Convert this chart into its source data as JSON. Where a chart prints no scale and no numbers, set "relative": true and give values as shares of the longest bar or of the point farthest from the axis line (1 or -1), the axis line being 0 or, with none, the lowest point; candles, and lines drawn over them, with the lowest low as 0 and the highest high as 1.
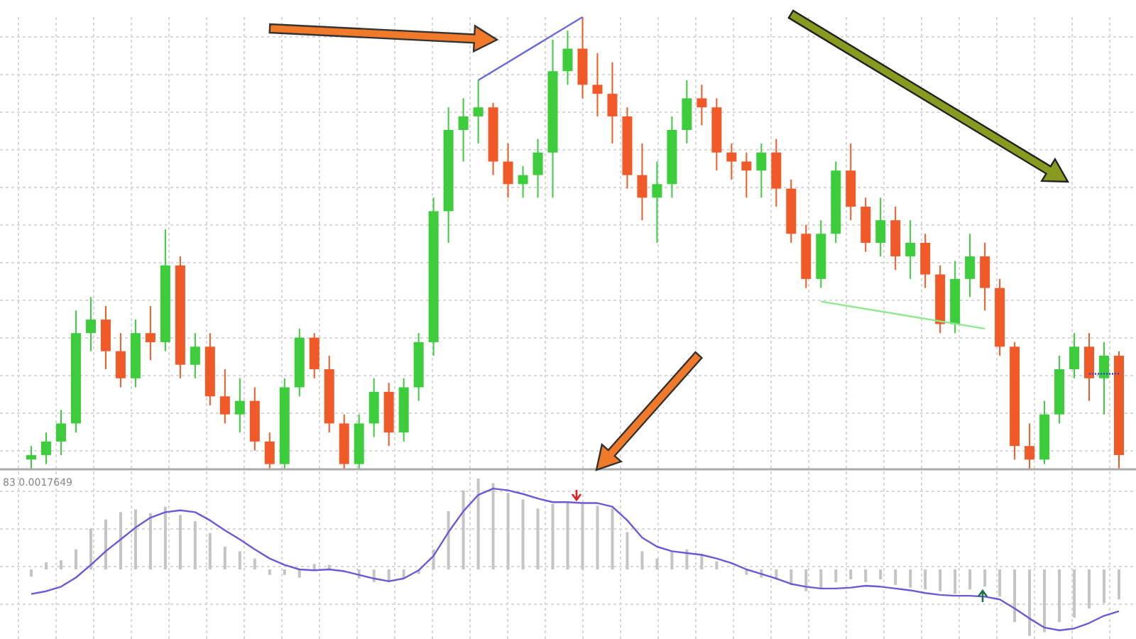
{
  "chart_data": [
    {
      "type": "candlestick",
      "relative": true,
      "grid": true,
      "categories": [
        null,
        null,
        null,
        null,
        null,
        null,
        null,
        null,
        null,
        null,
        null,
        null,
        null,
        null,
        null,
        null,
        null,
        null,
        null,
        null,
        null,
        null,
        null,
        null,
        null,
        null,
        null,
        null,
        null,
        null,
        null,
        null,
        null,
        null,
        null,
        null,
        null,
        null,
        null,
        null,
        null,
        null,
        null,
        null,
        null,
        null,
        null,
        null,
        null,
        null,
        null,
        null,
        null,
        null,
        null,
        null,
        null,
        null,
        null,
        null,
        null,
        null,
        null,
        null,
        null,
        null,
        null,
        null,
        null,
        null,
        null,
        null,
        null,
        null
      ],
      "ohlc": [
        [
          0.02,
          0.05,
          0.0,
          0.03
        ],
        [
          0.03,
          0.08,
          0.01,
          0.06
        ],
        [
          0.06,
          0.13,
          0.03,
          0.1
        ],
        [
          0.1,
          0.35,
          0.08,
          0.3
        ],
        [
          0.3,
          0.38,
          0.26,
          0.33
        ],
        [
          0.33,
          0.36,
          0.22,
          0.26
        ],
        [
          0.26,
          0.3,
          0.18,
          0.2
        ],
        [
          0.2,
          0.33,
          0.18,
          0.3
        ],
        [
          0.3,
          0.36,
          0.24,
          0.28
        ],
        [
          0.28,
          0.53,
          0.26,
          0.45
        ],
        [
          0.45,
          0.47,
          0.2,
          0.23
        ],
        [
          0.23,
          0.3,
          0.2,
          0.27
        ],
        [
          0.27,
          0.3,
          0.14,
          0.16
        ],
        [
          0.16,
          0.22,
          0.1,
          0.12
        ],
        [
          0.12,
          0.2,
          0.08,
          0.15
        ],
        [
          0.15,
          0.18,
          0.04,
          0.06
        ],
        [
          0.06,
          0.08,
          0.0,
          0.01
        ],
        [
          0.01,
          0.2,
          0.0,
          0.18
        ],
        [
          0.18,
          0.31,
          0.16,
          0.29
        ],
        [
          0.29,
          0.3,
          0.2,
          0.22
        ],
        [
          0.22,
          0.25,
          0.08,
          0.1
        ],
        [
          0.1,
          0.12,
          0.0,
          0.01
        ],
        [
          0.01,
          0.12,
          0.0,
          0.1
        ],
        [
          0.1,
          0.2,
          0.07,
          0.17
        ],
        [
          0.17,
          0.19,
          0.05,
          0.08
        ],
        [
          0.08,
          0.2,
          0.06,
          0.18
        ],
        [
          0.18,
          0.3,
          0.15,
          0.28
        ],
        [
          0.28,
          0.6,
          0.25,
          0.57
        ],
        [
          0.57,
          0.8,
          0.5,
          0.75
        ],
        [
          0.75,
          0.82,
          0.68,
          0.78
        ],
        [
          0.78,
          0.86,
          0.72,
          0.8
        ],
        [
          0.8,
          0.81,
          0.65,
          0.68
        ],
        [
          0.68,
          0.72,
          0.6,
          0.63
        ],
        [
          0.63,
          0.67,
          0.6,
          0.65
        ],
        [
          0.65,
          0.73,
          0.6,
          0.7
        ],
        [
          0.7,
          0.95,
          0.6,
          0.88
        ],
        [
          0.88,
          0.97,
          0.85,
          0.93
        ],
        [
          0.93,
          1.0,
          0.82,
          0.85
        ],
        [
          0.85,
          0.92,
          0.78,
          0.83
        ],
        [
          0.83,
          0.9,
          0.72,
          0.78
        ],
        [
          0.78,
          0.8,
          0.62,
          0.65
        ],
        [
          0.65,
          0.72,
          0.55,
          0.6
        ],
        [
          0.6,
          0.68,
          0.5,
          0.63
        ],
        [
          0.63,
          0.78,
          0.6,
          0.75
        ],
        [
          0.75,
          0.86,
          0.72,
          0.82
        ],
        [
          0.82,
          0.85,
          0.76,
          0.8
        ],
        [
          0.8,
          0.82,
          0.66,
          0.7
        ],
        [
          0.7,
          0.72,
          0.64,
          0.68
        ],
        [
          0.68,
          0.7,
          0.6,
          0.66
        ],
        [
          0.66,
          0.72,
          0.6,
          0.7
        ],
        [
          0.7,
          0.73,
          0.58,
          0.62
        ],
        [
          0.62,
          0.64,
          0.5,
          0.52
        ],
        [
          0.52,
          0.54,
          0.4,
          0.42
        ],
        [
          0.42,
          0.55,
          0.4,
          0.52
        ],
        [
          0.52,
          0.68,
          0.5,
          0.66
        ],
        [
          0.66,
          0.72,
          0.55,
          0.58
        ],
        [
          0.58,
          0.6,
          0.48,
          0.5
        ],
        [
          0.5,
          0.6,
          0.47,
          0.55
        ],
        [
          0.55,
          0.58,
          0.44,
          0.47
        ],
        [
          0.47,
          0.55,
          0.42,
          0.5
        ],
        [
          0.5,
          0.52,
          0.4,
          0.43
        ],
        [
          0.43,
          0.45,
          0.3,
          0.32
        ],
        [
          0.32,
          0.46,
          0.3,
          0.42
        ],
        [
          0.42,
          0.52,
          0.38,
          0.47
        ],
        [
          0.47,
          0.5,
          0.35,
          0.4
        ],
        [
          0.4,
          0.42,
          0.25,
          0.27
        ],
        [
          0.27,
          0.28,
          0.02,
          0.05
        ],
        [
          0.05,
          0.1,
          0.0,
          0.02
        ],
        [
          0.02,
          0.15,
          0.01,
          0.12
        ],
        [
          0.12,
          0.25,
          0.1,
          0.22
        ],
        [
          0.22,
          0.3,
          0.2,
          0.27
        ],
        [
          0.27,
          0.3,
          0.15,
          0.2
        ],
        [
          0.2,
          0.28,
          0.12,
          0.25
        ],
        [
          0.25,
          0.26,
          0.0,
          0.03
        ]
      ],
      "colors": [
        "#3ccc3c",
        "#3ccc3c",
        "#3ccc3c",
        "#3ccc3c",
        "#3ccc3c",
        "#f05a28",
        "#f05a28",
        "#3ccc3c",
        "#f05a28",
        "#3ccc3c",
        "#f05a28",
        "#3ccc3c",
        "#f05a28",
        "#f05a28",
        "#3ccc3c",
        "#f05a28",
        "#f05a28",
        "#3ccc3c",
        "#3ccc3c",
        "#f05a28",
        "#f05a28",
        "#f05a28",
        "#3ccc3c",
        "#3ccc3c",
        "#f05a28",
        "#3ccc3c",
        "#3ccc3c",
        "#3ccc3c",
        "#3ccc3c",
        "#3ccc3c",
        "#3ccc3c",
        "#f05a28",
        "#f05a28",
        "#3ccc3c",
        "#3ccc3c",
        "#3ccc3c",
        "#3ccc3c",
        "#f05a28",
        "#f05a28",
        "#f05a28",
        "#f05a28",
        "#f05a28",
        "#3ccc3c",
        "#3ccc3c",
        "#3ccc3c",
        "#f05a28",
        "#f05a28",
        "#f05a28",
        "#f05a28",
        "#3ccc3c",
        "#f05a28",
        "#f05a28",
        "#f05a28",
        "#3ccc3c",
        "#3ccc3c",
        "#f05a28",
        "#f05a28",
        "#3ccc3c",
        "#f05a28",
        "#3ccc3c",
        "#f05a28",
        "#f05a28",
        "#3ccc3c",
        "#3ccc3c",
        "#f05a28",
        "#f05a28",
        "#f05a28",
        "#f05a28",
        "#3ccc3c",
        "#3ccc3c",
        "#3ccc3c",
        "#f05a28",
        "#3ccc3c",
        "#f05a28"
      ],
      "series": [
        {
          "type": "line",
          "color": "#6a6ae0",
          "values": [
            null,
            null,
            null,
            null,
            null,
            null,
            null,
            null,
            null,
            null,
            null,
            null,
            null,
            null,
            null,
            null,
            null,
            null,
            null,
            null,
            null,
            null,
            null,
            null,
            null,
            null,
            null,
            null,
            null,
            null,
            0.86,
            null,
            null,
            null,
            null,
            null,
            null,
            1.0,
            null,
            null,
            null,
            null,
            null,
            null,
            null,
            null,
            null,
            null,
            null,
            null,
            null,
            null,
            null,
            null,
            null,
            null,
            null,
            null,
            null,
            null,
            null,
            null,
            null,
            null,
            null,
            null,
            null,
            null,
            null,
            null,
            null,
            null,
            null,
            null
          ]
        },
        {
          "type": "line",
          "color": "#8ee88e",
          "values": [
            null,
            null,
            null,
            null,
            null,
            null,
            null,
            null,
            null,
            null,
            null,
            null,
            null,
            null,
            null,
            null,
            null,
            null,
            null,
            null,
            null,
            null,
            null,
            null,
            null,
            null,
            null,
            null,
            null,
            null,
            null,
            null,
            null,
            null,
            null,
            null,
            null,
            null,
            null,
            null,
            null,
            null,
            null,
            null,
            null,
            null,
            null,
            null,
            null,
            null,
            null,
            null,
            null,
            0.37,
            null,
            null,
            null,
            null,
            null,
            null,
            null,
            null,
            null,
            null,
            0.31,
            null,
            null,
            null,
            null,
            null,
            null,
            null,
            null,
            null
          ]
        },
        {
          "type": "line",
          "color": "#3a3ad0",
          "line_style": "dotted",
          "values": [
            null,
            null,
            null,
            null,
            null,
            null,
            null,
            null,
            null,
            null,
            null,
            null,
            null,
            null,
            null,
            null,
            null,
            null,
            null,
            null,
            null,
            null,
            null,
            null,
            null,
            null,
            null,
            null,
            null,
            null,
            null,
            null,
            null,
            null,
            null,
            null,
            null,
            null,
            null,
            null,
            null,
            null,
            null,
            null,
            null,
            null,
            null,
            null,
            null,
            null,
            null,
            null,
            null,
            null,
            null,
            null,
            null,
            null,
            null,
            null,
            null,
            null,
            null,
            null,
            null,
            null,
            null,
            null,
            null,
            null,
            null,
            0.21,
            0.21,
            0.21
          ]
        }
      ]
    },
    {
      "type": "bar",
      "relative": true,
      "grid": true,
      "annotations": [
        "83 0.0017649"
      ],
      "categories": [
        null,
        null,
        null,
        null,
        null,
        null,
        null,
        null,
        null,
        null,
        null,
        null,
        null,
        null,
        null,
        null,
        null,
        null,
        null,
        null,
        null,
        null,
        null,
        null,
        null,
        null,
        null,
        null,
        null,
        null,
        null,
        null,
        null,
        null,
        null,
        null,
        null,
        null,
        null,
        null,
        null,
        null,
        null,
        null,
        null,
        null,
        null,
        null,
        null,
        null,
        null,
        null,
        null,
        null,
        null,
        null,
        null,
        null,
        null,
        null,
        null,
        null,
        null,
        null,
        null,
        null,
        null,
        null,
        null,
        null,
        null,
        null,
        null,
        null
      ],
      "series": [
        {
          "type": "bar",
          "color": "#c4c4c4",
          "values": [
            -0.08,
            0.08,
            0.1,
            0.22,
            0.45,
            0.55,
            0.63,
            0.66,
            0.62,
            0.69,
            0.6,
            0.53,
            0.4,
            0.25,
            0.2,
            0.12,
            -0.06,
            -0.06,
            -0.09,
            0.06,
            0.05,
            null,
            -0.1,
            -0.14,
            -0.14,
            -0.1,
            -0.05,
            0.22,
            0.64,
            0.87,
            1.0,
            0.95,
            0.84,
            0.77,
            0.67,
            0.72,
            0.75,
            0.72,
            0.7,
            0.67,
            0.41,
            0.2,
            0.12,
            0.2,
            0.22,
            0.17,
            0.09,
            null,
            -0.06,
            -0.09,
            -0.11,
            -0.17,
            -0.24,
            -0.22,
            -0.14,
            -0.11,
            -0.14,
            -0.11,
            -0.17,
            -0.2,
            -0.22,
            -0.24,
            -0.27,
            -0.22,
            -0.19,
            -0.3,
            -0.58,
            -0.73,
            -0.69,
            -0.58,
            -0.53,
            -0.43,
            -0.37,
            -0.33
          ]
        },
        {
          "type": "line",
          "color": "#6a5ad8",
          "values": [
            -0.27,
            -0.24,
            -0.19,
            -0.09,
            0.05,
            0.2,
            0.33,
            0.46,
            0.57,
            0.63,
            0.65,
            0.63,
            0.54,
            0.43,
            0.33,
            0.22,
            0.12,
            0.05,
            0,
            -0.01,
            0,
            -0.02,
            -0.06,
            -0.1,
            -0.13,
            -0.1,
            -0.01,
            0.15,
            0.41,
            0.64,
            0.82,
            0.89,
            0.87,
            0.83,
            0.78,
            0.74,
            0.74,
            0.73,
            0.73,
            0.69,
            0.54,
            0.35,
            0.25,
            0.2,
            0.18,
            0.16,
            0.12,
            0.07,
            0,
            -0.05,
            -0.1,
            -0.16,
            -0.19,
            -0.21,
            -0.21,
            -0.2,
            -0.18,
            -0.19,
            -0.21,
            -0.23,
            -0.26,
            -0.28,
            -0.29,
            -0.29,
            -0.3,
            -0.33,
            -0.43,
            -0.54,
            -0.64,
            -0.67,
            -0.65,
            -0.59,
            -0.51,
            -0.46
          ]
        }
      ]
    }
  ]
}
